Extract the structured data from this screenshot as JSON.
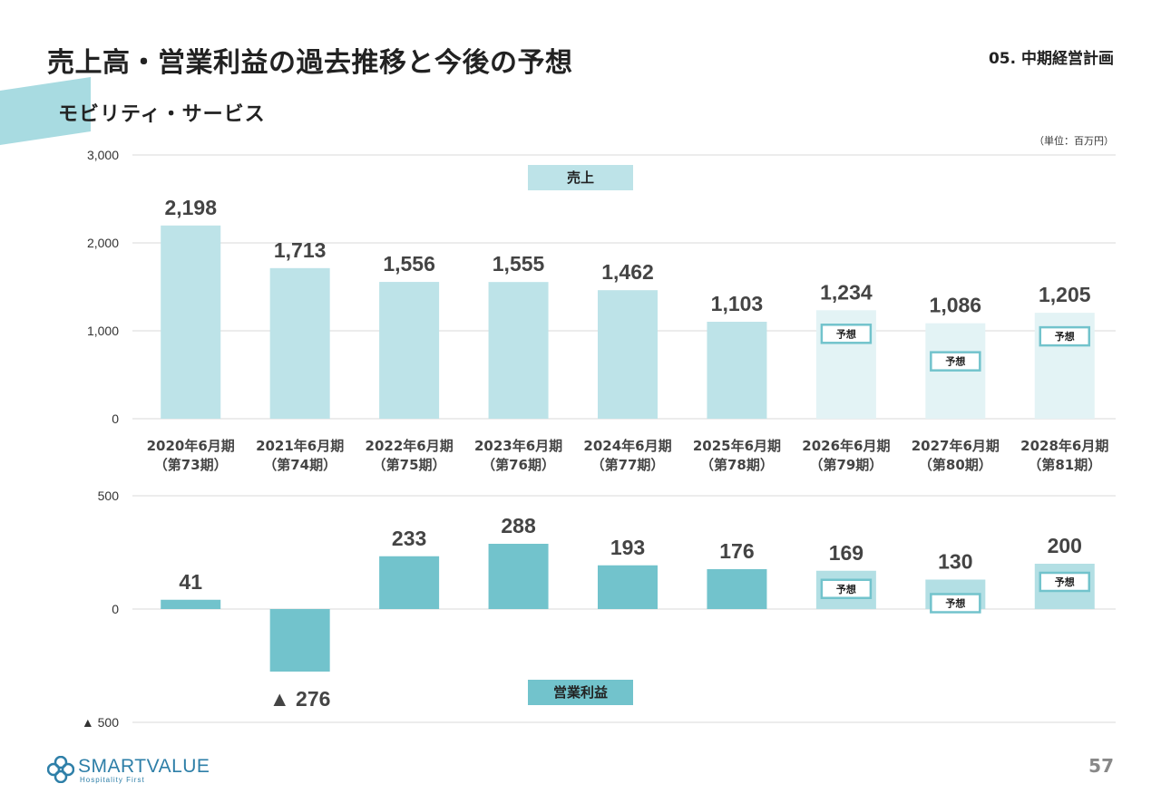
{
  "header": {
    "title": "売上高・営業利益の過去推移と今後の予想",
    "section": "05. 中期経営計画",
    "subtitle": "モビリティ・サービス",
    "unit": "（単位：百万円）"
  },
  "footer": {
    "page_number": "57",
    "logo_text": "SMARTVALUE",
    "logo_tagline": "Hospitality First"
  },
  "colors": {
    "sales_bar": "#bde3e8",
    "sales_forecast_bar": "#e3f3f5",
    "profit_bar": "#72c3cc",
    "profit_forecast_bar": "#b3dfe4",
    "label_box": "#bde3e8",
    "profit_label_box": "#72c3cc",
    "forecast_border": "#72c3cc",
    "accent": "#a8dbe1",
    "grid": "#d9d9d9"
  },
  "chart_data": [
    {
      "type": "bar",
      "title": "売上",
      "categories": [
        "2020年6月期",
        "2021年6月期",
        "2022年6月期",
        "2023年6月期",
        "2024年6月期",
        "2025年6月期",
        "2026年6月期",
        "2027年6月期",
        "2028年6月期"
      ],
      "category_sublabels": [
        "（第73期）",
        "（第74期）",
        "（第75期）",
        "（第76期）",
        "（第77期）",
        "（第78期）",
        "（第79期）",
        "（第80期）",
        "（第81期）"
      ],
      "values": [
        2198,
        1713,
        1556,
        1555,
        1462,
        1103,
        1234,
        1086,
        1205
      ],
      "value_labels": [
        "2,198",
        "1,713",
        "1,556",
        "1,555",
        "1,462",
        "1,103",
        "1,234",
        "1,086",
        "1,205"
      ],
      "forecast": [
        false,
        false,
        false,
        false,
        false,
        false,
        true,
        true,
        true
      ],
      "forecast_label": "予想",
      "ylim": [
        0,
        3000
      ],
      "yticks": [
        0,
        1000,
        2000,
        3000
      ],
      "ytick_labels": [
        "0",
        "1,000",
        "2,000",
        "3,000"
      ],
      "grid": true
    },
    {
      "type": "bar",
      "title": "営業利益",
      "categories": [
        "2020年6月期",
        "2021年6月期",
        "2022年6月期",
        "2023年6月期",
        "2024年6月期",
        "2025年6月期",
        "2026年6月期",
        "2027年6月期",
        "2028年6月期"
      ],
      "values": [
        41,
        -276,
        233,
        288,
        193,
        176,
        169,
        130,
        200
      ],
      "value_labels": [
        "41",
        "▲ 276",
        "233",
        "288",
        "193",
        "176",
        "169",
        "130",
        "200"
      ],
      "forecast": [
        false,
        false,
        false,
        false,
        false,
        false,
        true,
        true,
        true
      ],
      "forecast_label": "予想",
      "ylim": [
        -500,
        500
      ],
      "yticks": [
        -500,
        0,
        500
      ],
      "ytick_labels": [
        "▲ 500",
        "0",
        "500"
      ],
      "grid": true
    }
  ]
}
